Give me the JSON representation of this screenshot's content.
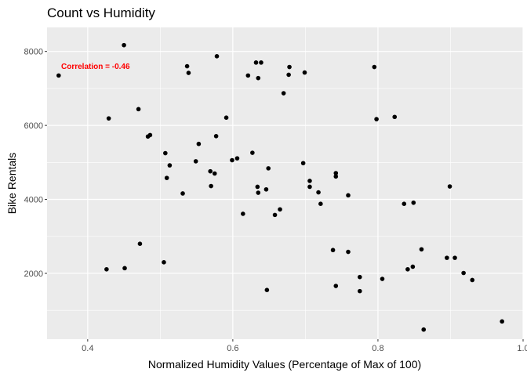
{
  "chart_data": {
    "type": "scatter",
    "title": "Count vs Humidity",
    "xlabel": "Normalized Humidity Values (Percentage of Max of 100)",
    "ylabel": "Bike Rentals",
    "xlim": [
      0.344,
      1.0
    ],
    "ylim": [
      220,
      8650
    ],
    "x_ticks": [
      0.4,
      0.6,
      0.8,
      1.0
    ],
    "x_tick_labels": [
      "0.4",
      "0.6",
      "0.8",
      "1.0"
    ],
    "y_ticks": [
      2000,
      4000,
      6000,
      8000
    ],
    "y_tick_labels": [
      "2000",
      "4000",
      "6000",
      "8000"
    ],
    "grid": true,
    "annotation": "Correlation = -0.46",
    "colors": {
      "panel": "#ebebeb",
      "grid": "#ffffff",
      "points": "#000000",
      "annotation": "#ff0000"
    },
    "points": [
      {
        "x": 0.36,
        "y": 7350
      },
      {
        "x": 0.45,
        "y": 8170
      },
      {
        "x": 0.429,
        "y": 6190
      },
      {
        "x": 0.47,
        "y": 6440
      },
      {
        "x": 0.483,
        "y": 5700
      },
      {
        "x": 0.486,
        "y": 5740
      },
      {
        "x": 0.507,
        "y": 5250
      },
      {
        "x": 0.513,
        "y": 4920
      },
      {
        "x": 0.509,
        "y": 4580
      },
      {
        "x": 0.531,
        "y": 4160
      },
      {
        "x": 0.537,
        "y": 7600
      },
      {
        "x": 0.539,
        "y": 7420
      },
      {
        "x": 0.549,
        "y": 5030
      },
      {
        "x": 0.553,
        "y": 5500
      },
      {
        "x": 0.569,
        "y": 4760
      },
      {
        "x": 0.57,
        "y": 4360
      },
      {
        "x": 0.575,
        "y": 4700
      },
      {
        "x": 0.577,
        "y": 5710
      },
      {
        "x": 0.578,
        "y": 7870
      },
      {
        "x": 0.591,
        "y": 6210
      },
      {
        "x": 0.599,
        "y": 5060
      },
      {
        "x": 0.606,
        "y": 5110
      },
      {
        "x": 0.614,
        "y": 3610
      },
      {
        "x": 0.621,
        "y": 7350
      },
      {
        "x": 0.627,
        "y": 5260
      },
      {
        "x": 0.632,
        "y": 7700
      },
      {
        "x": 0.634,
        "y": 4340
      },
      {
        "x": 0.635,
        "y": 4180
      },
      {
        "x": 0.635,
        "y": 7280
      },
      {
        "x": 0.639,
        "y": 7700
      },
      {
        "x": 0.646,
        "y": 4270
      },
      {
        "x": 0.649,
        "y": 4840
      },
      {
        "x": 0.658,
        "y": 3580
      },
      {
        "x": 0.665,
        "y": 3730
      },
      {
        "x": 0.67,
        "y": 6870
      },
      {
        "x": 0.677,
        "y": 7370
      },
      {
        "x": 0.678,
        "y": 7580
      },
      {
        "x": 0.697,
        "y": 4980
      },
      {
        "x": 0.699,
        "y": 7430
      },
      {
        "x": 0.706,
        "y": 4500
      },
      {
        "x": 0.706,
        "y": 4340
      },
      {
        "x": 0.718,
        "y": 4190
      },
      {
        "x": 0.721,
        "y": 3880
      },
      {
        "x": 0.738,
        "y": 2630
      },
      {
        "x": 0.742,
        "y": 4710
      },
      {
        "x": 0.742,
        "y": 4620
      },
      {
        "x": 0.759,
        "y": 4110
      },
      {
        "x": 0.759,
        "y": 2580
      },
      {
        "x": 0.795,
        "y": 7580
      },
      {
        "x": 0.798,
        "y": 6170
      },
      {
        "x": 0.823,
        "y": 6230
      },
      {
        "x": 0.836,
        "y": 3880
      },
      {
        "x": 0.849,
        "y": 3910
      },
      {
        "x": 0.86,
        "y": 2650
      },
      {
        "x": 0.895,
        "y": 2420
      },
      {
        "x": 0.899,
        "y": 4350
      },
      {
        "x": 0.906,
        "y": 2420
      },
      {
        "x": 0.918,
        "y": 2010
      },
      {
        "x": 0.93,
        "y": 1820
      },
      {
        "x": 0.426,
        "y": 2110
      },
      {
        "x": 0.451,
        "y": 2140
      },
      {
        "x": 0.472,
        "y": 2800
      },
      {
        "x": 0.505,
        "y": 2300
      },
      {
        "x": 0.647,
        "y": 1550
      },
      {
        "x": 0.742,
        "y": 1660
      },
      {
        "x": 0.775,
        "y": 1900
      },
      {
        "x": 0.775,
        "y": 1520
      },
      {
        "x": 0.806,
        "y": 1850
      },
      {
        "x": 0.841,
        "y": 2110
      },
      {
        "x": 0.848,
        "y": 2180
      },
      {
        "x": 0.863,
        "y": 480
      },
      {
        "x": 0.971,
        "y": 700
      }
    ]
  }
}
